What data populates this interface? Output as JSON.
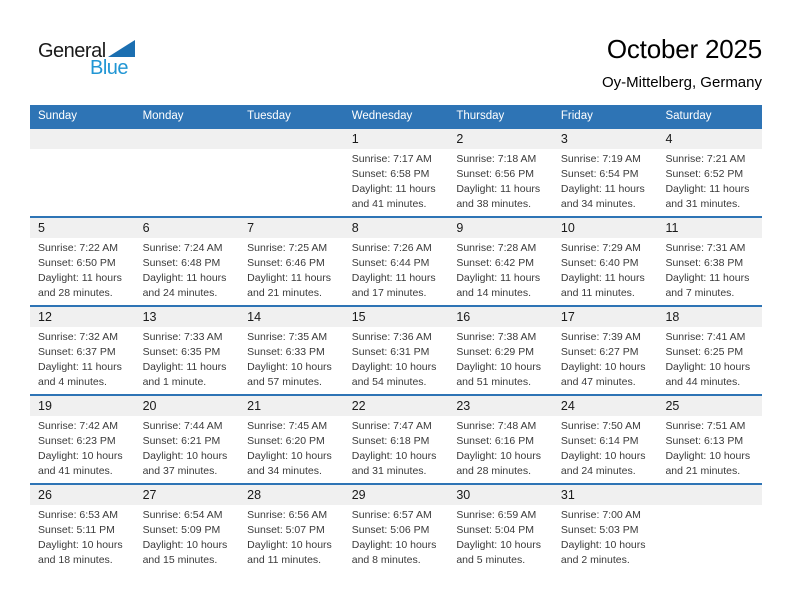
{
  "logo": {
    "word_black": "General",
    "word_blue": "Blue"
  },
  "header": {
    "title": "October 2025",
    "subtitle": "Oy-Mittelberg, Germany"
  },
  "colors": {
    "header_bar": "#2e74b5",
    "week_separator": "#2e74b5",
    "day_number_band": "#f0f0f0",
    "logo_blue_text": "#2196d4",
    "logo_triangle": "#1b6fb1",
    "weekday_text": "#ffffff"
  },
  "calendar": {
    "weekdays": [
      "Sunday",
      "Monday",
      "Tuesday",
      "Wednesday",
      "Thursday",
      "Friday",
      "Saturday"
    ],
    "weeks": [
      [
        null,
        null,
        null,
        {
          "day": "1",
          "sunrise": "Sunrise: 7:17 AM",
          "sunset": "Sunset: 6:58 PM",
          "daylight": "Daylight: 11 hours and 41 minutes."
        },
        {
          "day": "2",
          "sunrise": "Sunrise: 7:18 AM",
          "sunset": "Sunset: 6:56 PM",
          "daylight": "Daylight: 11 hours and 38 minutes."
        },
        {
          "day": "3",
          "sunrise": "Sunrise: 7:19 AM",
          "sunset": "Sunset: 6:54 PM",
          "daylight": "Daylight: 11 hours and 34 minutes."
        },
        {
          "day": "4",
          "sunrise": "Sunrise: 7:21 AM",
          "sunset": "Sunset: 6:52 PM",
          "daylight": "Daylight: 11 hours and 31 minutes."
        }
      ],
      [
        {
          "day": "5",
          "sunrise": "Sunrise: 7:22 AM",
          "sunset": "Sunset: 6:50 PM",
          "daylight": "Daylight: 11 hours and 28 minutes."
        },
        {
          "day": "6",
          "sunrise": "Sunrise: 7:24 AM",
          "sunset": "Sunset: 6:48 PM",
          "daylight": "Daylight: 11 hours and 24 minutes."
        },
        {
          "day": "7",
          "sunrise": "Sunrise: 7:25 AM",
          "sunset": "Sunset: 6:46 PM",
          "daylight": "Daylight: 11 hours and 21 minutes."
        },
        {
          "day": "8",
          "sunrise": "Sunrise: 7:26 AM",
          "sunset": "Sunset: 6:44 PM",
          "daylight": "Daylight: 11 hours and 17 minutes."
        },
        {
          "day": "9",
          "sunrise": "Sunrise: 7:28 AM",
          "sunset": "Sunset: 6:42 PM",
          "daylight": "Daylight: 11 hours and 14 minutes."
        },
        {
          "day": "10",
          "sunrise": "Sunrise: 7:29 AM",
          "sunset": "Sunset: 6:40 PM",
          "daylight": "Daylight: 11 hours and 11 minutes."
        },
        {
          "day": "11",
          "sunrise": "Sunrise: 7:31 AM",
          "sunset": "Sunset: 6:38 PM",
          "daylight": "Daylight: 11 hours and 7 minutes."
        }
      ],
      [
        {
          "day": "12",
          "sunrise": "Sunrise: 7:32 AM",
          "sunset": "Sunset: 6:37 PM",
          "daylight": "Daylight: 11 hours and 4 minutes."
        },
        {
          "day": "13",
          "sunrise": "Sunrise: 7:33 AM",
          "sunset": "Sunset: 6:35 PM",
          "daylight": "Daylight: 11 hours and 1 minute."
        },
        {
          "day": "14",
          "sunrise": "Sunrise: 7:35 AM",
          "sunset": "Sunset: 6:33 PM",
          "daylight": "Daylight: 10 hours and 57 minutes."
        },
        {
          "day": "15",
          "sunrise": "Sunrise: 7:36 AM",
          "sunset": "Sunset: 6:31 PM",
          "daylight": "Daylight: 10 hours and 54 minutes."
        },
        {
          "day": "16",
          "sunrise": "Sunrise: 7:38 AM",
          "sunset": "Sunset: 6:29 PM",
          "daylight": "Daylight: 10 hours and 51 minutes."
        },
        {
          "day": "17",
          "sunrise": "Sunrise: 7:39 AM",
          "sunset": "Sunset: 6:27 PM",
          "daylight": "Daylight: 10 hours and 47 minutes."
        },
        {
          "day": "18",
          "sunrise": "Sunrise: 7:41 AM",
          "sunset": "Sunset: 6:25 PM",
          "daylight": "Daylight: 10 hours and 44 minutes."
        }
      ],
      [
        {
          "day": "19",
          "sunrise": "Sunrise: 7:42 AM",
          "sunset": "Sunset: 6:23 PM",
          "daylight": "Daylight: 10 hours and 41 minutes."
        },
        {
          "day": "20",
          "sunrise": "Sunrise: 7:44 AM",
          "sunset": "Sunset: 6:21 PM",
          "daylight": "Daylight: 10 hours and 37 minutes."
        },
        {
          "day": "21",
          "sunrise": "Sunrise: 7:45 AM",
          "sunset": "Sunset: 6:20 PM",
          "daylight": "Daylight: 10 hours and 34 minutes."
        },
        {
          "day": "22",
          "sunrise": "Sunrise: 7:47 AM",
          "sunset": "Sunset: 6:18 PM",
          "daylight": "Daylight: 10 hours and 31 minutes."
        },
        {
          "day": "23",
          "sunrise": "Sunrise: 7:48 AM",
          "sunset": "Sunset: 6:16 PM",
          "daylight": "Daylight: 10 hours and 28 minutes."
        },
        {
          "day": "24",
          "sunrise": "Sunrise: 7:50 AM",
          "sunset": "Sunset: 6:14 PM",
          "daylight": "Daylight: 10 hours and 24 minutes."
        },
        {
          "day": "25",
          "sunrise": "Sunrise: 7:51 AM",
          "sunset": "Sunset: 6:13 PM",
          "daylight": "Daylight: 10 hours and 21 minutes."
        }
      ],
      [
        {
          "day": "26",
          "sunrise": "Sunrise: 6:53 AM",
          "sunset": "Sunset: 5:11 PM",
          "daylight": "Daylight: 10 hours and 18 minutes."
        },
        {
          "day": "27",
          "sunrise": "Sunrise: 6:54 AM",
          "sunset": "Sunset: 5:09 PM",
          "daylight": "Daylight: 10 hours and 15 minutes."
        },
        {
          "day": "28",
          "sunrise": "Sunrise: 6:56 AM",
          "sunset": "Sunset: 5:07 PM",
          "daylight": "Daylight: 10 hours and 11 minutes."
        },
        {
          "day": "29",
          "sunrise": "Sunrise: 6:57 AM",
          "sunset": "Sunset: 5:06 PM",
          "daylight": "Daylight: 10 hours and 8 minutes."
        },
        {
          "day": "30",
          "sunrise": "Sunrise: 6:59 AM",
          "sunset": "Sunset: 5:04 PM",
          "daylight": "Daylight: 10 hours and 5 minutes."
        },
        {
          "day": "31",
          "sunrise": "Sunrise: 7:00 AM",
          "sunset": "Sunset: 5:03 PM",
          "daylight": "Daylight: 10 hours and 2 minutes."
        },
        null
      ]
    ]
  }
}
